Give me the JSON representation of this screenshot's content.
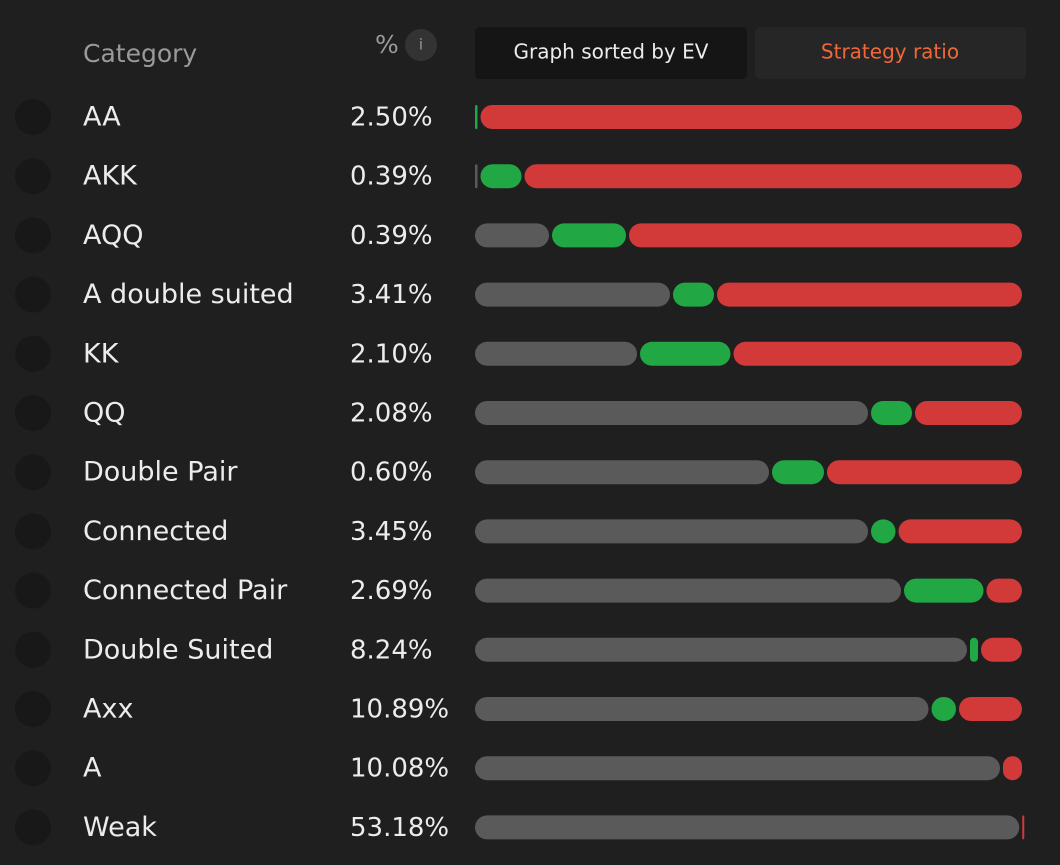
{
  "header": {
    "category": "Category",
    "percent": "%",
    "info": "i",
    "tabs": [
      "Graph sorted by EV",
      "Strategy ratio"
    ]
  },
  "rows": [
    {
      "category": "AA",
      "percent": "2.50%",
      "ratio": [
        0,
        1,
        99
      ]
    },
    {
      "category": "AKK",
      "percent": "0.39%",
      "ratio": [
        1,
        8,
        91
      ]
    },
    {
      "category": "AQQ",
      "percent": "0.39%",
      "ratio": [
        14,
        14,
        72
      ]
    },
    {
      "category": "A double suited",
      "percent": "3.41%",
      "ratio": [
        36,
        8,
        56
      ]
    },
    {
      "category": "KK",
      "percent": "2.10%",
      "ratio": [
        30,
        17,
        53
      ]
    },
    {
      "category": "QQ",
      "percent": "2.08%",
      "ratio": [
        72,
        8,
        20
      ]
    },
    {
      "category": "Double Pair",
      "percent": "0.60%",
      "ratio": [
        54,
        10,
        36
      ]
    },
    {
      "category": "Connected",
      "percent": "3.45%",
      "ratio": [
        72,
        5,
        23
      ]
    },
    {
      "category": "Connected Pair",
      "percent": "2.69%",
      "ratio": [
        78,
        15,
        7
      ]
    },
    {
      "category": "Double Suited",
      "percent": "8.24%",
      "ratio": [
        90,
        2,
        8
      ]
    },
    {
      "category": "Axx",
      "percent": "10.89%",
      "ratio": [
        83,
        5,
        12
      ]
    },
    {
      "category": "A",
      "percent": "10.08%",
      "ratio": [
        96,
        0,
        4
      ]
    },
    {
      "category": "Weak",
      "percent": "53.18%",
      "ratio": [
        99.5,
        0,
        0.5
      ]
    }
  ]
}
